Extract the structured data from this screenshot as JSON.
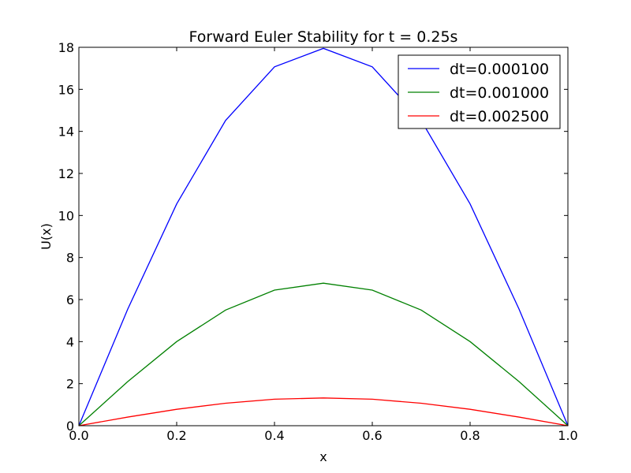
{
  "chart_data": {
    "type": "line",
    "title": "Forward Euler Stability for t = 0.25s",
    "xlabel": "x",
    "ylabel": "U(x)",
    "xlim": [
      0.0,
      1.0
    ],
    "ylim": [
      0,
      18
    ],
    "xticks": [
      "0.0",
      "0.2",
      "0.4",
      "0.6",
      "0.8",
      "1.0"
    ],
    "yticks": [
      "0",
      "2",
      "4",
      "6",
      "8",
      "10",
      "12",
      "14",
      "16",
      "18"
    ],
    "grid": false,
    "legend_position": "top-right",
    "x": [
      0.0,
      0.1,
      0.2,
      0.3,
      0.4,
      0.5,
      0.6,
      0.7,
      0.8,
      0.9,
      1.0
    ],
    "series": [
      {
        "name": "dt=0.000100",
        "color": "#0000ff",
        "values": [
          0.0,
          5.55,
          10.55,
          14.52,
          17.07,
          17.95,
          17.07,
          14.52,
          10.55,
          5.55,
          0.0
        ]
      },
      {
        "name": "dt=0.001000",
        "color": "#008000",
        "values": [
          0.0,
          2.1,
          4.0,
          5.5,
          6.45,
          6.78,
          6.45,
          5.5,
          4.0,
          2.1,
          0.0
        ]
      },
      {
        "name": "dt=0.002500",
        "color": "#ff0000",
        "values": [
          0.0,
          0.41,
          0.78,
          1.07,
          1.26,
          1.32,
          1.26,
          1.07,
          0.78,
          0.41,
          0.0
        ]
      }
    ]
  }
}
